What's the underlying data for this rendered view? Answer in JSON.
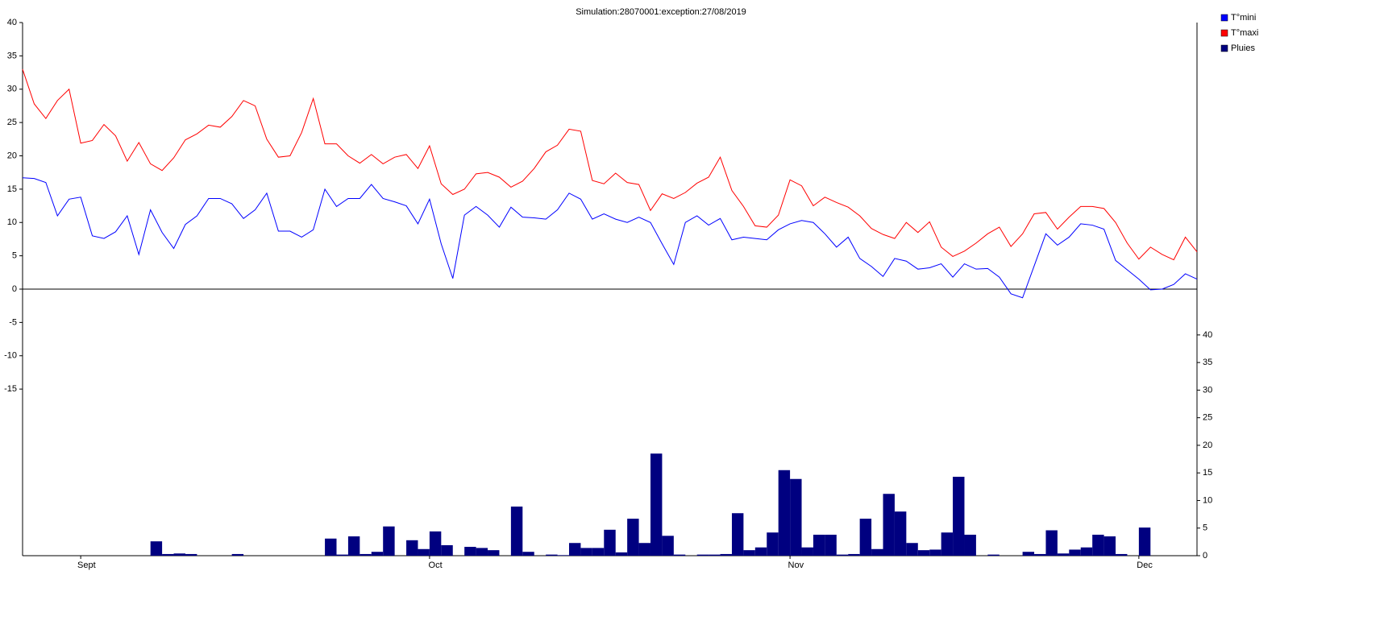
{
  "chart_data": {
    "type": "combo",
    "title": "Simulation:28070001:exception:27/08/2019",
    "categories": [
      null,
      null,
      null,
      null,
      null,
      "Sept",
      null,
      null,
      null,
      null,
      null,
      null,
      null,
      null,
      null,
      null,
      null,
      null,
      null,
      null,
      null,
      null,
      null,
      null,
      null,
      null,
      null,
      null,
      null,
      null,
      null,
      null,
      null,
      null,
      null,
      "Oct",
      null,
      null,
      null,
      null,
      null,
      null,
      null,
      null,
      null,
      null,
      null,
      null,
      null,
      null,
      null,
      null,
      null,
      null,
      null,
      null,
      null,
      null,
      null,
      null,
      null,
      null,
      null,
      null,
      null,
      null,
      "Nov",
      null,
      null,
      null,
      null,
      null,
      null,
      null,
      null,
      null,
      null,
      null,
      null,
      null,
      null,
      null,
      null,
      null,
      null,
      null,
      null,
      null,
      null,
      null,
      null,
      null,
      null,
      null,
      null,
      null,
      "Dec",
      null,
      null,
      null,
      null,
      null
    ],
    "ylim": [
      -40,
      40
    ],
    "yticks": [
      -15,
      -10,
      -5,
      0,
      5,
      10,
      15,
      20,
      25,
      30,
      35,
      40
    ],
    "y2lim": [
      0,
      96.6
    ],
    "y2ticks": [
      0,
      5,
      10,
      15,
      20,
      25,
      30,
      35,
      40
    ],
    "legend": "top-right",
    "series": [
      {
        "name": "T°mini",
        "type": "line",
        "color": "#0000ff",
        "values": [
          16.7,
          16.6,
          16.0,
          11.0,
          13.5,
          13.8,
          8.0,
          7.6,
          8.6,
          11.0,
          5.2,
          11.9,
          8.5,
          6.1,
          9.7,
          11.0,
          13.6,
          13.6,
          12.8,
          10.6,
          11.9,
          14.4,
          8.7,
          8.7,
          7.8,
          8.9,
          15.0,
          12.4,
          13.6,
          13.6,
          15.7,
          13.6,
          13.1,
          12.5,
          9.8,
          13.5,
          6.8,
          1.6,
          11.1,
          12.4,
          11.1,
          9.3,
          12.3,
          10.8,
          10.7,
          10.5,
          11.9,
          14.4,
          13.5,
          10.5,
          11.3,
          10.5,
          10.0,
          10.8,
          10.0,
          6.8,
          3.7,
          10.0,
          11.0,
          9.6,
          10.6,
          7.4,
          7.8,
          7.6,
          7.4,
          8.9,
          9.8,
          10.3,
          10.0,
          8.3,
          6.3,
          7.8,
          4.6,
          3.4,
          1.9,
          4.6,
          4.2,
          3.0,
          3.2,
          3.8,
          1.8,
          3.8,
          3.0,
          3.1,
          1.8,
          -0.7,
          -1.3,
          3.5,
          8.3,
          6.6,
          7.8,
          9.8,
          9.6,
          9.0,
          4.3,
          2.9,
          1.5,
          -0.1,
          0.0,
          0.7,
          2.3,
          1.5
        ]
      },
      {
        "name": "T°maxi",
        "type": "line",
        "color": "#ff0000",
        "values": [
          33.0,
          27.8,
          25.6,
          28.3,
          30.0,
          21.9,
          22.3,
          24.7,
          23.0,
          19.2,
          22.0,
          18.8,
          17.8,
          19.7,
          22.4,
          23.3,
          24.6,
          24.3,
          25.9,
          28.3,
          27.5,
          22.5,
          19.8,
          20.0,
          23.5,
          28.6,
          21.8,
          21.8,
          20.0,
          18.9,
          20.2,
          18.8,
          19.8,
          20.2,
          18.1,
          21.5,
          15.8,
          14.2,
          15.0,
          17.3,
          17.5,
          16.8,
          15.3,
          16.2,
          18.1,
          20.6,
          21.6,
          24.0,
          23.7,
          16.3,
          15.8,
          17.4,
          16.0,
          15.7,
          11.8,
          14.3,
          13.6,
          14.5,
          15.9,
          16.8,
          19.8,
          14.8,
          12.4,
          9.5,
          9.3,
          11.1,
          16.4,
          15.5,
          12.5,
          13.8,
          13.0,
          12.3,
          11.0,
          9.1,
          8.2,
          7.6,
          10.0,
          8.5,
          10.1,
          6.3,
          4.9,
          5.7,
          6.9,
          8.3,
          9.3,
          6.4,
          8.3,
          11.3,
          11.5,
          9.0,
          10.8,
          12.4,
          12.4,
          12.1,
          10.0,
          6.9,
          4.5,
          6.3,
          5.2,
          4.4,
          7.8,
          5.6
        ]
      },
      {
        "name": "Pluies",
        "type": "bar",
        "axis": "y2",
        "color": "#000080",
        "values": [
          0,
          0,
          0,
          0,
          0,
          0,
          0,
          0,
          0,
          0,
          0,
          2.6,
          0.3,
          0.4,
          0.3,
          0,
          0,
          0,
          0.3,
          0,
          0,
          0,
          0,
          0,
          0,
          0,
          3.1,
          0.2,
          3.5,
          0.3,
          0.7,
          5.3,
          0,
          2.8,
          1.2,
          4.4,
          1.9,
          0,
          1.6,
          1.4,
          1.0,
          0,
          8.9,
          0.7,
          0,
          0.2,
          0.1,
          2.3,
          1.4,
          1.4,
          4.7,
          0.6,
          6.7,
          2.3,
          18.5,
          3.6,
          0.2,
          0,
          0.2,
          0.2,
          0.3,
          7.7,
          1.0,
          1.5,
          4.2,
          15.5,
          13.9,
          1.5,
          3.8,
          3.8,
          0.2,
          0.3,
          6.7,
          1.2,
          11.2,
          8.0,
          2.3,
          1.0,
          1.1,
          4.2,
          14.3,
          3.8,
          0,
          0.2,
          0,
          0,
          0.7,
          0.3,
          4.6,
          0.4,
          1.1,
          1.5,
          3.8,
          3.5,
          0.3,
          0,
          5.1,
          0,
          0,
          0,
          0,
          0
        ]
      }
    ]
  }
}
